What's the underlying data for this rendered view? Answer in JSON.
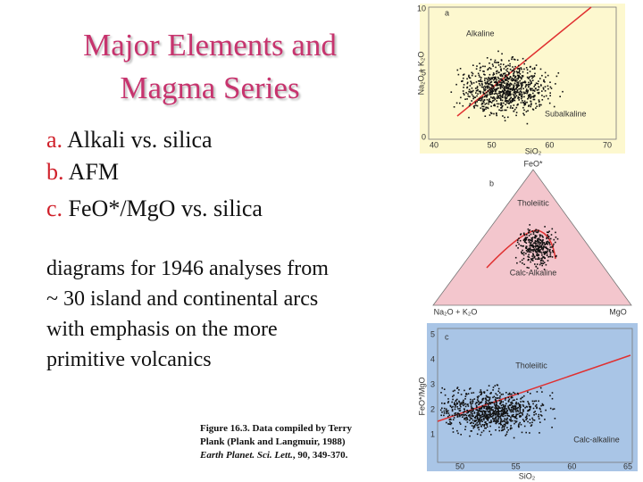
{
  "title": [
    "Major Elements and",
    "Magma Series"
  ],
  "list": [
    {
      "letter": "a.",
      "text": "Alkali vs. silica"
    },
    {
      "letter": "b.",
      "text": "AFM"
    },
    {
      "letter": "c.",
      "text": "FeO*/MgO vs. silica"
    }
  ],
  "paragraph": [
    "diagrams for 1946 analyses from",
    "~ 30 island and continental arcs",
    "with emphasis on the more",
    "primitive volcanics"
  ],
  "caption": {
    "lines": [
      "Figure 16.3. Data compiled by Terry",
      "Plank (Plank and Langmuir, 1988)"
    ],
    "journal": "Earth Planet. Sci. Lett.",
    "details": ", 90, 349-370."
  },
  "panels": [
    {
      "letter": "a",
      "upper": "Alkaline",
      "lower": "Subalkaline",
      "y_label": "Na₂O + K₂O",
      "x_label": "SiO₂",
      "x_ticks": [
        40,
        50,
        60,
        70
      ],
      "y_ticks": [
        0,
        5,
        10
      ]
    },
    {
      "letter": "b",
      "apex": "FeO*",
      "upper": "Tholeiitic",
      "lower": "Calc-Alkaline",
      "left": "Na₂O + K₂O",
      "right": "MgO"
    },
    {
      "letter": "c",
      "upper": "Tholeiitic",
      "lower": "Calc-alkaline",
      "y_label": "FeO*/MgO",
      "x_label": "SiO₂",
      "x_ticks": [
        50,
        55,
        60,
        65
      ],
      "y_ticks": [
        1,
        2,
        3,
        4,
        5
      ]
    }
  ]
}
